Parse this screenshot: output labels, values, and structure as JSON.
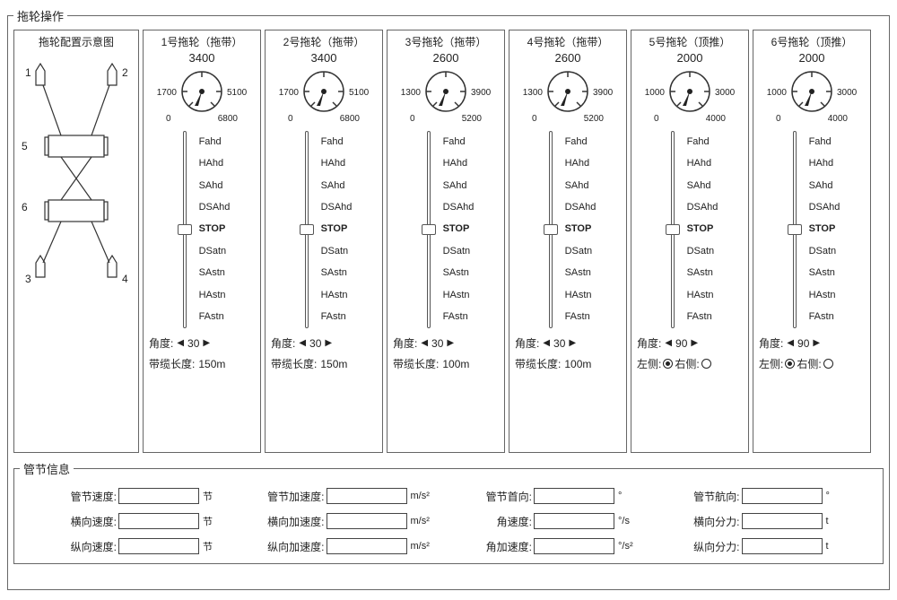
{
  "panel_title": "拖轮操作",
  "schematic_title": "拖轮配置示意图",
  "slider_labels": [
    "Fahd",
    "HAhd",
    "SAhd",
    "DSAhd",
    "STOP",
    "DSatn",
    "SAstn",
    "HAstn",
    "FAstn"
  ],
  "angle_label_prefix": "角度:",
  "cable_label_prefix": "带缆长度:",
  "side_left_label": "左侧:",
  "side_right_label": "右侧:",
  "tugs": [
    {
      "title": "1号拖轮（拖带）",
      "gauge_top": "3400",
      "gauge_left": "1700",
      "gauge_right": "5100",
      "gauge_bl": "0",
      "gauge_br": "6800",
      "angle": "30",
      "bottom_mode": "cable",
      "cable": "150m",
      "side": null
    },
    {
      "title": "2号拖轮（拖带）",
      "gauge_top": "3400",
      "gauge_left": "1700",
      "gauge_right": "5100",
      "gauge_bl": "0",
      "gauge_br": "6800",
      "angle": "30",
      "bottom_mode": "cable",
      "cable": "150m",
      "side": null
    },
    {
      "title": "3号拖轮（拖带）",
      "gauge_top": "2600",
      "gauge_left": "1300",
      "gauge_right": "3900",
      "gauge_bl": "0",
      "gauge_br": "5200",
      "angle": "30",
      "bottom_mode": "cable",
      "cable": "100m",
      "side": null
    },
    {
      "title": "4号拖轮（拖带）",
      "gauge_top": "2600",
      "gauge_left": "1300",
      "gauge_right": "3900",
      "gauge_bl": "0",
      "gauge_br": "5200",
      "angle": "30",
      "bottom_mode": "cable",
      "cable": "100m",
      "side": null
    },
    {
      "title": "5号拖轮（顶推）",
      "gauge_top": "2000",
      "gauge_left": "1000",
      "gauge_right": "3000",
      "gauge_bl": "0",
      "gauge_br": "4000",
      "angle": "90",
      "bottom_mode": "side",
      "cable": null,
      "side": "left"
    },
    {
      "title": "6号拖轮（顶推）",
      "gauge_top": "2000",
      "gauge_left": "1000",
      "gauge_right": "3000",
      "gauge_bl": "0",
      "gauge_br": "4000",
      "angle": "90",
      "bottom_mode": "side",
      "cable": null,
      "side": "left"
    }
  ],
  "info_title": "管节信息",
  "info_fields": [
    {
      "label": "管节速度:",
      "unit": "节",
      "value": ""
    },
    {
      "label": "管节加速度:",
      "unit": "m/s²",
      "value": ""
    },
    {
      "label": "管节首向:",
      "unit": "°",
      "value": ""
    },
    {
      "label": "管节航向:",
      "unit": "°",
      "value": ""
    },
    {
      "label": "横向速度:",
      "unit": "节",
      "value": ""
    },
    {
      "label": "横向加速度:",
      "unit": "m/s²",
      "value": ""
    },
    {
      "label": "角速度:",
      "unit": "°/s",
      "value": ""
    },
    {
      "label": "横向分力:",
      "unit": "t",
      "value": ""
    },
    {
      "label": "纵向速度:",
      "unit": "节",
      "value": ""
    },
    {
      "label": "纵向加速度:",
      "unit": "m/s²",
      "value": ""
    },
    {
      "label": "角加速度:",
      "unit": "°/s²",
      "value": ""
    },
    {
      "label": "纵向分力:",
      "unit": "t",
      "value": ""
    }
  ],
  "colors": {
    "border": "#666666",
    "text": "#222222",
    "background": "#ffffff"
  },
  "schematic": {
    "nodes": [
      "1",
      "2",
      "3",
      "4",
      "5",
      "6"
    ]
  }
}
